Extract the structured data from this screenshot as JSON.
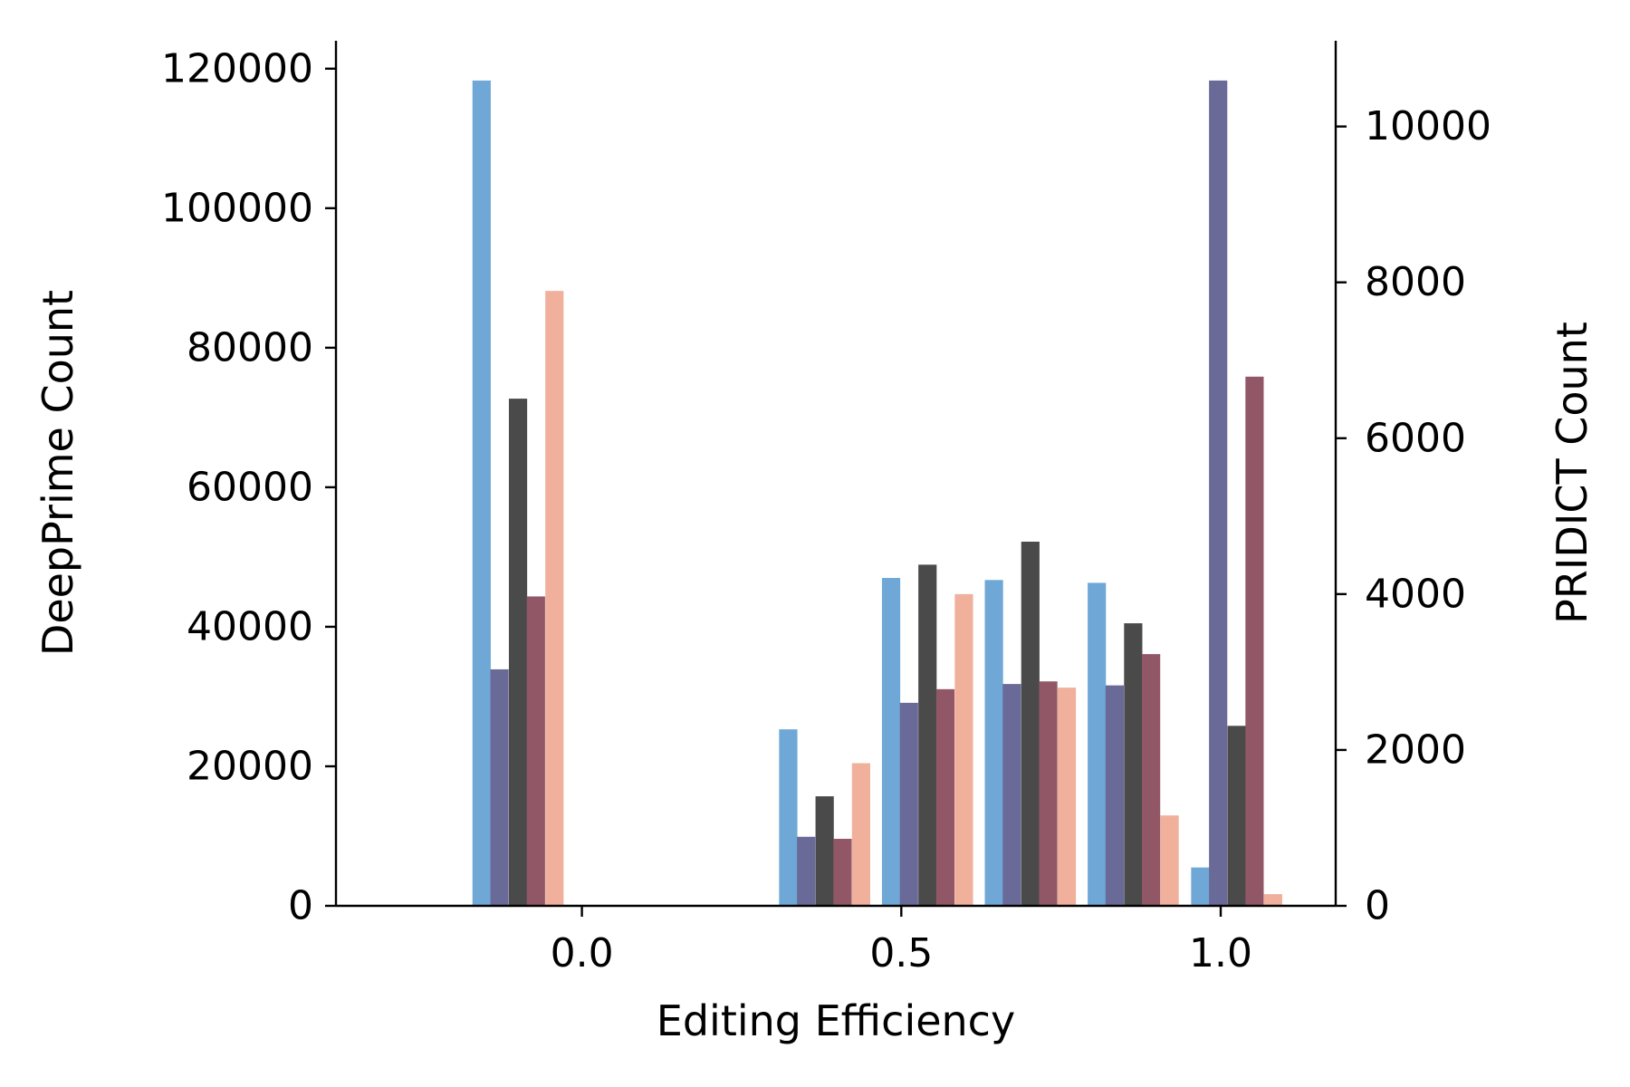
{
  "chart_data": {
    "type": "bar",
    "xlabel": "Editing Efficiency",
    "ylabel": "DeepPrime Count",
    "y2label": "PRIDICT Count",
    "xlim": [
      -0.385,
      1.18
    ],
    "ylim": [
      0,
      124000
    ],
    "y2lim": [
      0,
      11100
    ],
    "xticks": [
      "0.0",
      "0.5",
      "1.0"
    ],
    "yticks": [
      "0",
      "20000",
      "40000",
      "60000",
      "80000",
      "100000",
      "120000"
    ],
    "y2ticks": [
      "0",
      "2000",
      "4000",
      "6000",
      "8000",
      "10000"
    ],
    "bar_width": 0.0286,
    "series": [
      {
        "axis": "left",
        "color": "#6fa8d6",
        "x": [
          -0.157,
          0.323,
          0.484,
          0.645,
          0.806,
          0.968
        ],
        "values": [
          118300,
          25300,
          47000,
          46700,
          46300,
          5500
        ]
      },
      {
        "axis": "left",
        "color": "#6a6a99",
        "x": [
          -0.129,
          0.351,
          0.512,
          0.673,
          0.834,
          0.996
        ],
        "values": [
          33900,
          9900,
          29100,
          31800,
          31600,
          118300
        ]
      },
      {
        "axis": "left",
        "color": "#4a4a4a",
        "x": [
          -0.1,
          0.38,
          0.541,
          0.702,
          0.863,
          1.025
        ],
        "values": [
          72700,
          15700,
          48900,
          52200,
          40500,
          25800
        ]
      },
      {
        "axis": "right",
        "color": "#925766",
        "x": [
          -0.072,
          0.408,
          0.569,
          0.73,
          0.891,
          1.053
        ],
        "values": [
          3970,
          860,
          2780,
          2880,
          3230,
          6790
        ]
      },
      {
        "axis": "right",
        "color": "#f0b09c",
        "x": [
          -0.043,
          0.437,
          0.598,
          0.759,
          0.92,
          1.082
        ],
        "values": [
          7890,
          1830,
          4000,
          2800,
          1160,
          150
        ]
      }
    ]
  }
}
